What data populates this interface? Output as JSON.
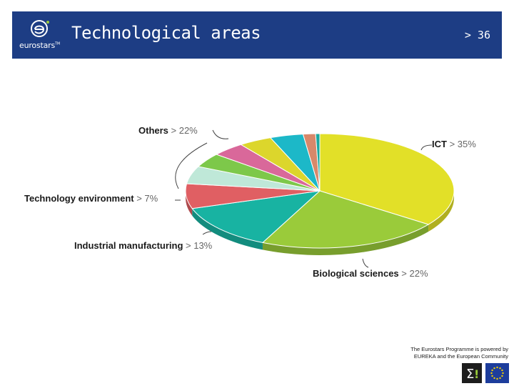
{
  "header": {
    "title": "Technological areas",
    "page_number": "> 36",
    "logo_text": "eurostars",
    "logo_tm": "TM"
  },
  "footer": {
    "line1": "The Eurostars Programme is powered by",
    "line2": "EUREKA and the European Community"
  },
  "colors": {
    "header_bg": "#1d3d84",
    "label_name": "#1a1a1a",
    "label_value": "#666666"
  },
  "chart_data": {
    "type": "pie",
    "title": "",
    "grouped_label": {
      "name": "Others",
      "value": "> 22%"
    },
    "labels": [
      {
        "id": "ict",
        "name": "ICT",
        "value": "> 35%"
      },
      {
        "id": "bio",
        "name": "Biological sciences",
        "value": "> 22%"
      },
      {
        "id": "ind",
        "name": "Industrial manufacturing",
        "value": "> 13%"
      },
      {
        "id": "env",
        "name": "Technology environment",
        "value": "> 7%"
      }
    ],
    "slices": [
      {
        "label_id": "ict",
        "value": 35,
        "color": "#e2e028"
      },
      {
        "label_id": "bio",
        "value": 22,
        "color": "#9acb3a"
      },
      {
        "label_id": "ind",
        "value": 13,
        "color": "#18b3a2"
      },
      {
        "label_id": "env",
        "value": 7,
        "color": "#e05f63"
      },
      {
        "label_id": "others",
        "value": 5,
        "color": "#bfe8d8"
      },
      {
        "label_id": "others",
        "value": 4,
        "color": "#7dc84a"
      },
      {
        "label_id": "others",
        "value": 4,
        "color": "#d9689a"
      },
      {
        "label_id": "others",
        "value": 4,
        "color": "#dcd62c"
      },
      {
        "label_id": "others",
        "value": 4,
        "color": "#1cb8c8"
      },
      {
        "label_id": "others",
        "value": 1.5,
        "color": "#d8886a"
      },
      {
        "label_id": "others",
        "value": 0.5,
        "color": "#1aa8a0"
      }
    ]
  }
}
